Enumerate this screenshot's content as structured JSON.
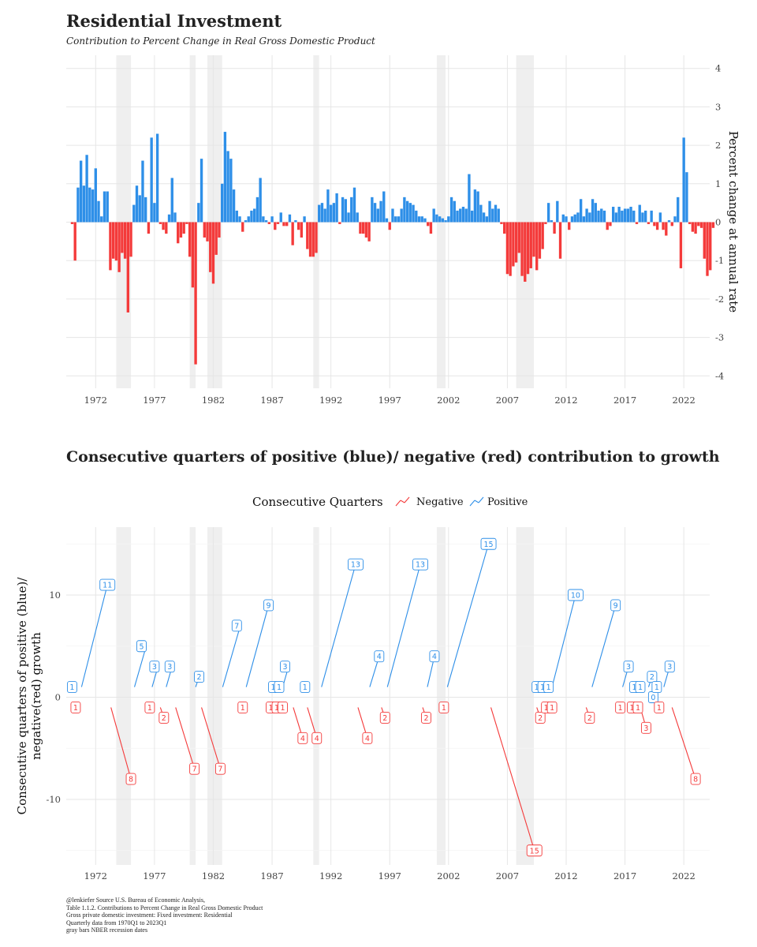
{
  "title": "Residential Investment",
  "subtitle": "Contribution to Percent Change in Real Gross Domestic Product",
  "title2": "Consecutive quarters of positive (blue)/ negative (red) contribution to growth",
  "footer": [
    "@lenkiefer Source U.S. Bureau of Economic Analysis,",
    "Table 1.1.2. Contributions to Percent Change in Real Gross Domestic Product",
    "Gross private domestic investment: Fixed investment: Residential",
    "Quarterly data from 1970Q1 to 2023Q1",
    "gray bars NBER recession dates"
  ],
  "colors": {
    "positive": "#2E8FE8",
    "negative": "#F43A3A",
    "recession": "#EFEFEF",
    "grid": "#E6E6E6"
  },
  "chart_data": [
    {
      "type": "bar",
      "title": "Residential Investment",
      "ylabel": "Percent change at annual rate",
      "xlabel": "",
      "ylim": [
        -4.3,
        4.3
      ],
      "xlim": [
        1969.5,
        2024.2
      ],
      "yticks": [
        "4",
        "3",
        "2",
        "1",
        "0",
        "-1",
        "-2",
        "-3",
        "-4"
      ],
      "xticks": [
        "1972",
        "1977",
        "1982",
        "1987",
        "1992",
        "1997",
        "2002",
        "2007",
        "2012",
        "2017",
        "2022"
      ],
      "recessions": [
        [
          1973.75,
          1975.0
        ],
        [
          1980.0,
          1980.5
        ],
        [
          1981.5,
          1982.75
        ],
        [
          1990.5,
          1991.0
        ],
        [
          2001.0,
          2001.75
        ],
        [
          2007.75,
          2009.25
        ]
      ],
      "start": "1970Q1",
      "values": [
        -0.05,
        -1.0,
        0.9,
        1.6,
        0.95,
        1.75,
        0.9,
        0.85,
        1.4,
        0.55,
        0.15,
        0.8,
        0.8,
        -1.25,
        -0.95,
        -1.0,
        -1.3,
        -0.8,
        -0.95,
        -2.35,
        -0.9,
        0.45,
        0.95,
        0.7,
        1.6,
        0.65,
        -0.3,
        2.2,
        0.5,
        2.3,
        -0.05,
        -0.2,
        -0.3,
        0.2,
        1.15,
        0.25,
        -0.55,
        -0.4,
        -0.3,
        -0.05,
        -0.9,
        -1.7,
        -3.7,
        0.5,
        1.65,
        -0.4,
        -0.5,
        -1.3,
        -1.6,
        -0.85,
        -0.4,
        1.0,
        2.35,
        1.85,
        1.65,
        0.85,
        0.3,
        0.15,
        -0.25,
        0.05,
        0.15,
        0.3,
        0.35,
        0.65,
        1.15,
        0.15,
        0.05,
        -0.05,
        0.15,
        -0.2,
        -0.05,
        0.25,
        -0.1,
        -0.1,
        0.2,
        -0.6,
        0.05,
        -0.2,
        -0.4,
        0.15,
        -0.7,
        -0.9,
        -0.9,
        -0.8,
        0.45,
        0.5,
        0.35,
        0.85,
        0.45,
        0.5,
        0.75,
        -0.05,
        0.65,
        0.6,
        0.25,
        0.65,
        0.9,
        0.25,
        -0.3,
        -0.3,
        -0.4,
        -0.5,
        0.65,
        0.5,
        0.35,
        0.55,
        0.8,
        0.1,
        -0.2,
        0.35,
        0.15,
        0.15,
        0.35,
        0.65,
        0.55,
        0.5,
        0.45,
        0.3,
        0.15,
        0.15,
        0.1,
        -0.1,
        -0.3,
        0.35,
        0.2,
        0.15,
        0.1,
        0.05,
        0.15,
        0.65,
        0.55,
        0.3,
        0.35,
        0.4,
        0.35,
        1.25,
        0.3,
        0.85,
        0.8,
        0.45,
        0.25,
        0.15,
        0.55,
        0.35,
        0.45,
        0.35,
        -0.05,
        -0.3,
        -1.35,
        -1.4,
        -1.15,
        -1.05,
        -0.8,
        -1.4,
        -1.55,
        -1.35,
        -1.2,
        -0.9,
        -1.25,
        -0.95,
        -0.7,
        -0.05,
        0.5,
        0.05,
        -0.3,
        0.55,
        -0.95,
        0.2,
        0.15,
        -0.2,
        0.15,
        0.2,
        0.25,
        0.6,
        0.15,
        0.35,
        0.25,
        0.6,
        0.5,
        0.3,
        0.35,
        0.3,
        -0.2,
        -0.1,
        0.4,
        0.25,
        0.4,
        0.3,
        0.35,
        0.35,
        0.4,
        0.3,
        -0.05,
        0.45,
        0.25,
        0.3,
        -0.05,
        0.3,
        -0.1,
        -0.2,
        0.25,
        -0.2,
        -0.35,
        0.05,
        -0.1,
        0.15,
        0.65,
        -1.2,
        2.2,
        1.3,
        -0.05,
        -0.25,
        -0.3,
        -0.1,
        -0.15,
        -0.95,
        -1.4,
        -1.25,
        -0.15
      ]
    },
    {
      "type": "scatter",
      "title": "Consecutive quarters of positive (blue)/ negative (red) contribution to growth",
      "ylabel": "Consecutive quarters of positive (blue)/ negative(red) growth",
      "xlabel": "",
      "ylim": [
        -16.4,
        16.8
      ],
      "xlim": [
        1969.5,
        2024.2
      ],
      "yticks": [
        "10",
        "0",
        "-10"
      ],
      "xticks": [
        "1972",
        "1977",
        "1982",
        "1987",
        "1992",
        "1997",
        "2002",
        "2007",
        "2012",
        "2017",
        "2022"
      ],
      "recessions": [
        [
          1973.75,
          1975.0
        ],
        [
          1980.0,
          1980.5
        ],
        [
          1981.5,
          1982.75
        ],
        [
          1990.5,
          1991.0
        ],
        [
          2001.0,
          2001.75
        ],
        [
          2007.75,
          2009.25
        ]
      ],
      "legend": {
        "title": "Consecutive Quarters",
        "entries": [
          "Negative",
          "Positive"
        ],
        "position": "top"
      },
      "runs": [
        {
          "sign": "negative",
          "label": "1",
          "lx": 1970.3,
          "ly": -1,
          "x0": 1970.3,
          "x1": 1970.3
        },
        {
          "sign": "positive",
          "label": "1",
          "lx": 1970.0,
          "ly": 1,
          "x0": 1970.5,
          "x1": 1970.5
        },
        {
          "sign": "positive",
          "label": "11",
          "lx": 1973.0,
          "ly": 11,
          "x0": 1970.8,
          "x1": 1973.0
        },
        {
          "sign": "negative",
          "label": "8",
          "lx": 1975.0,
          "ly": -8,
          "x0": 1973.3,
          "x1": 1975.0
        },
        {
          "sign": "positive",
          "label": "5",
          "lx": 1975.9,
          "ly": 5,
          "x0": 1975.3,
          "x1": 1976.3
        },
        {
          "sign": "negative",
          "label": "1",
          "lx": 1976.6,
          "ly": -1,
          "x0": 1976.6,
          "x1": 1976.6
        },
        {
          "sign": "positive",
          "label": "3",
          "lx": 1977.0,
          "ly": 3,
          "x0": 1976.8,
          "x1": 1977.3
        },
        {
          "sign": "negative",
          "label": "2",
          "lx": 1977.8,
          "ly": -2,
          "x0": 1977.5,
          "x1": 1977.8
        },
        {
          "sign": "positive",
          "label": "3",
          "lx": 1978.3,
          "ly": 3,
          "x0": 1978.0,
          "x1": 1978.5
        },
        {
          "sign": "negative",
          "label": "7",
          "lx": 1980.4,
          "ly": -7,
          "x0": 1978.8,
          "x1": 1980.4
        },
        {
          "sign": "positive",
          "label": "2",
          "lx": 1980.8,
          "ly": 2,
          "x0": 1980.5,
          "x1": 1980.8
        },
        {
          "sign": "negative",
          "label": "7",
          "lx": 1982.6,
          "ly": -7,
          "x0": 1981.0,
          "x1": 1982.6
        },
        {
          "sign": "positive",
          "label": "7",
          "lx": 1984.0,
          "ly": 7,
          "x0": 1982.8,
          "x1": 1984.3
        },
        {
          "sign": "negative",
          "label": "1",
          "lx": 1984.5,
          "ly": -1,
          "x0": 1984.5,
          "x1": 1984.5
        },
        {
          "sign": "positive",
          "label": "9",
          "lx": 1986.7,
          "ly": 9,
          "x0": 1984.8,
          "x1": 1986.7
        },
        {
          "sign": "negative",
          "label": "1",
          "lx": 1986.9,
          "ly": -1,
          "x0": 1986.9,
          "x1": 1986.9
        },
        {
          "sign": "positive",
          "label": "1",
          "lx": 1987.1,
          "ly": 1,
          "x0": 1987.1,
          "x1": 1987.1
        },
        {
          "sign": "negative",
          "label": "1",
          "lx": 1987.4,
          "ly": -1,
          "x0": 1987.4,
          "x1": 1987.4
        },
        {
          "sign": "positive",
          "label": "1",
          "lx": 1987.6,
          "ly": 1,
          "x0": 1987.6,
          "x1": 1987.6
        },
        {
          "sign": "negative",
          "label": "1",
          "lx": 1987.9,
          "ly": -1,
          "x0": 1987.9,
          "x1": 1987.9
        },
        {
          "sign": "positive",
          "label": "3",
          "lx": 1988.1,
          "ly": 3,
          "x0": 1987.9,
          "x1": 1988.4
        },
        {
          "sign": "negative",
          "label": "4",
          "lx": 1989.6,
          "ly": -4,
          "x0": 1988.8,
          "x1": 1989.6
        },
        {
          "sign": "positive",
          "label": "1",
          "lx": 1989.8,
          "ly": 1,
          "x0": 1989.8,
          "x1": 1989.8
        },
        {
          "sign": "negative",
          "label": "4",
          "lx": 1990.8,
          "ly": -4,
          "x0": 1990.0,
          "x1": 1990.8
        },
        {
          "sign": "positive",
          "label": "13",
          "lx": 1994.1,
          "ly": 13,
          "x0": 1991.2,
          "x1": 1994.1
        },
        {
          "sign": "negative",
          "label": "4",
          "lx": 1995.1,
          "ly": -4,
          "x0": 1994.3,
          "x1": 1995.1
        },
        {
          "sign": "positive",
          "label": "4",
          "lx": 1996.1,
          "ly": 4,
          "x0": 1995.3,
          "x1": 1996.1
        },
        {
          "sign": "negative",
          "label": "2",
          "lx": 1996.6,
          "ly": -2,
          "x0": 1996.3,
          "x1": 1996.6
        },
        {
          "sign": "positive",
          "label": "13",
          "lx": 1999.6,
          "ly": 13,
          "x0": 1996.8,
          "x1": 1999.6
        },
        {
          "sign": "negative",
          "label": "2",
          "lx": 2000.1,
          "ly": -2,
          "x0": 1999.8,
          "x1": 2000.1
        },
        {
          "sign": "positive",
          "label": "4",
          "lx": 2000.8,
          "ly": 4,
          "x0": 2000.2,
          "x1": 2000.8
        },
        {
          "sign": "negative",
          "label": "1",
          "lx": 2001.6,
          "ly": -1,
          "x0": 2001.6,
          "x1": 2001.6
        },
        {
          "sign": "positive",
          "label": "15",
          "lx": 2005.4,
          "ly": 15,
          "x0": 2001.9,
          "x1": 2005.4
        },
        {
          "sign": "negative",
          "label": "15",
          "lx": 2009.3,
          "ly": -15,
          "x0": 2005.6,
          "x1": 2009.3
        },
        {
          "sign": "positive",
          "label": "1",
          "lx": 2009.5,
          "ly": 1,
          "x0": 2009.5,
          "x1": 2009.5
        },
        {
          "sign": "negative",
          "label": "2",
          "lx": 2009.8,
          "ly": -2,
          "x0": 2009.5,
          "x1": 2009.8
        },
        {
          "sign": "positive",
          "label": "1",
          "lx": 2010.0,
          "ly": 1,
          "x0": 2010.0,
          "x1": 2010.0
        },
        {
          "sign": "negative",
          "label": "1",
          "lx": 2010.3,
          "ly": -1,
          "x0": 2010.3,
          "x1": 2010.3
        },
        {
          "sign": "positive",
          "label": "1",
          "lx": 2010.5,
          "ly": 1,
          "x0": 2010.5,
          "x1": 2010.5
        },
        {
          "sign": "negative",
          "label": "1",
          "lx": 2010.8,
          "ly": -1,
          "x0": 2010.8,
          "x1": 2010.8
        },
        {
          "sign": "positive",
          "label": "10",
          "lx": 2012.8,
          "ly": 10,
          "x0": 2010.8,
          "x1": 2012.8
        },
        {
          "sign": "negative",
          "label": "2",
          "lx": 2014.0,
          "ly": -2,
          "x0": 2013.7,
          "x1": 2014.0
        },
        {
          "sign": "positive",
          "label": "9",
          "lx": 2016.2,
          "ly": 9,
          "x0": 2014.2,
          "x1": 2016.2
        },
        {
          "sign": "negative",
          "label": "1",
          "lx": 2016.6,
          "ly": -1,
          "x0": 2016.6,
          "x1": 2016.6
        },
        {
          "sign": "positive",
          "label": "3",
          "lx": 2017.3,
          "ly": 3,
          "x0": 2016.8,
          "x1": 2017.3
        },
        {
          "sign": "negative",
          "label": "1",
          "lx": 2017.6,
          "ly": -1,
          "x0": 2017.6,
          "x1": 2017.6
        },
        {
          "sign": "positive",
          "label": "1",
          "lx": 2017.8,
          "ly": 1,
          "x0": 2017.8,
          "x1": 2017.8
        },
        {
          "sign": "negative",
          "label": "1",
          "lx": 2018.1,
          "ly": -1,
          "x0": 2018.1,
          "x1": 2018.1
        },
        {
          "sign": "positive",
          "label": "1",
          "lx": 2018.3,
          "ly": 1,
          "x0": 2018.3,
          "x1": 2018.3
        },
        {
          "sign": "negative",
          "label": "3",
          "lx": 2018.8,
          "ly": -3,
          "x0": 2018.3,
          "x1": 2018.8
        },
        {
          "sign": "positive",
          "label": "2",
          "lx": 2019.3,
          "ly": 2,
          "x0": 2019.0,
          "x1": 2019.3
        },
        {
          "sign": "positive",
          "label": "0",
          "lx": 2019.4,
          "ly": 0,
          "x0": 2019.4,
          "x1": 2019.4
        },
        {
          "sign": "positive",
          "label": "1",
          "lx": 2019.7,
          "ly": 1,
          "x0": 2019.7,
          "x1": 2019.7
        },
        {
          "sign": "negative",
          "label": "1",
          "lx": 2019.9,
          "ly": -1,
          "x0": 2019.9,
          "x1": 2019.9
        },
        {
          "sign": "positive",
          "label": "3",
          "lx": 2020.8,
          "ly": 3,
          "x0": 2020.3,
          "x1": 2020.8
        },
        {
          "sign": "negative",
          "label": "8",
          "lx": 2023.0,
          "ly": -8,
          "x0": 2021.0,
          "x1": 2023.0
        }
      ]
    }
  ]
}
